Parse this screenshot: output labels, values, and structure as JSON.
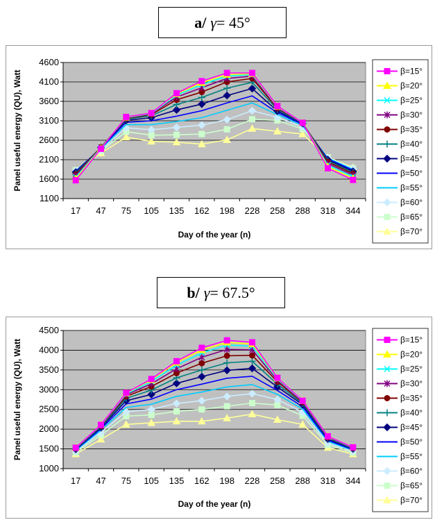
{
  "panels": [
    {
      "label": "a/",
      "gamma_symbol": "γ",
      "gamma_value": "= 45°"
    },
    {
      "label": "b/",
      "gamma_symbol": "γ",
      "gamma_value": "= 67.5°"
    }
  ],
  "chart_data": [
    {
      "type": "line",
      "ylabel": "Panel useful energy (QU), Watt",
      "xlabel": "Day of the year (n)",
      "categories": [
        "17",
        "47",
        "75",
        "105",
        "135",
        "162",
        "198",
        "228",
        "258",
        "288",
        "318",
        "344"
      ],
      "ylim": [
        1100,
        4600
      ],
      "yticks": [
        1100,
        1600,
        2100,
        2600,
        3100,
        3600,
        4100,
        4600
      ],
      "grid": true,
      "legend_position": "right",
      "series": [
        {
          "name": "β=15°",
          "color": "#ff00ff",
          "marker": "square",
          "values": [
            1570,
            2380,
            3200,
            3300,
            3810,
            4120,
            4330,
            4330,
            3480,
            3050,
            1880,
            1580
          ]
        },
        {
          "name": "β=20°",
          "color": "#ffff00",
          "marker": "triangle",
          "values": [
            1610,
            2390,
            3190,
            3300,
            3790,
            4080,
            4290,
            4310,
            3470,
            3050,
            1920,
            1620
          ]
        },
        {
          "name": "β=25°",
          "color": "#00ffff",
          "marker": "x",
          "values": [
            1650,
            2400,
            3180,
            3290,
            3760,
            4030,
            4250,
            4290,
            3460,
            3050,
            1960,
            1660
          ]
        },
        {
          "name": "β=30°",
          "color": "#800080",
          "marker": "star",
          "values": [
            1690,
            2410,
            3170,
            3280,
            3710,
            3950,
            4190,
            4250,
            3440,
            3050,
            2000,
            1700
          ]
        },
        {
          "name": "β=35°",
          "color": "#800000",
          "marker": "circle",
          "values": [
            1720,
            2420,
            3160,
            3260,
            3640,
            3840,
            4100,
            4190,
            3420,
            3050,
            2040,
            1740
          ]
        },
        {
          "name": "β=40°",
          "color": "#008080",
          "marker": "plus",
          "values": [
            1750,
            2420,
            3140,
            3230,
            3520,
            3700,
            3940,
            4090,
            3390,
            3040,
            2070,
            1770
          ]
        },
        {
          "name": "β=45°",
          "color": "#000080",
          "marker": "diamond",
          "values": [
            1780,
            2410,
            3110,
            3180,
            3380,
            3530,
            3750,
            3930,
            3350,
            3030,
            2100,
            1800
          ]
        },
        {
          "name": "β=50°",
          "color": "#0000ff",
          "marker": "none",
          "values": [
            1800,
            2400,
            3060,
            3100,
            3220,
            3360,
            3560,
            3740,
            3310,
            3010,
            2120,
            1830
          ]
        },
        {
          "name": "β=55°",
          "color": "#00ccff",
          "marker": "none",
          "values": [
            1810,
            2380,
            3000,
            3000,
            3080,
            3180,
            3370,
            3560,
            3260,
            2980,
            2140,
            1850
          ]
        },
        {
          "name": "β=60°",
          "color": "#ccecff",
          "marker": "diamond",
          "values": [
            1820,
            2350,
            2920,
            2870,
            2930,
            2990,
            3130,
            3360,
            3190,
            2940,
            2150,
            1870
          ]
        },
        {
          "name": "β=65°",
          "color": "#ccffcc",
          "marker": "square",
          "values": [
            1830,
            2320,
            2820,
            2730,
            2740,
            2760,
            2880,
            3140,
            3110,
            2890,
            2160,
            1880
          ]
        },
        {
          "name": "β=70°",
          "color": "#ffff99",
          "marker": "triangle",
          "values": [
            1820,
            2270,
            2680,
            2570,
            2550,
            2500,
            2610,
            2900,
            2830,
            2760,
            2160,
            1900
          ]
        }
      ]
    },
    {
      "type": "line",
      "ylabel": "Panel useful energy (QU), Watt",
      "xlabel": "Day of the year (n)",
      "categories": [
        "17",
        "47",
        "75",
        "105",
        "135",
        "162",
        "198",
        "228",
        "258",
        "288",
        "318",
        "344"
      ],
      "ylim": [
        1000,
        4500
      ],
      "yticks": [
        1000,
        1500,
        2000,
        2500,
        3000,
        3500,
        4000,
        4500
      ],
      "grid": true,
      "legend_position": "right",
      "series": [
        {
          "name": "β=15°",
          "color": "#ff00ff",
          "marker": "square",
          "values": [
            1530,
            2110,
            2920,
            3270,
            3720,
            4060,
            4250,
            4200,
            3300,
            2720,
            1820,
            1540
          ]
        },
        {
          "name": "β=20°",
          "color": "#ffff00",
          "marker": "triangle",
          "values": [
            1530,
            2110,
            2910,
            3250,
            3690,
            4010,
            4200,
            4160,
            3290,
            2720,
            1820,
            1540
          ]
        },
        {
          "name": "β=25°",
          "color": "#00ffff",
          "marker": "x",
          "values": [
            1520,
            2100,
            2890,
            3210,
            3620,
            3930,
            4130,
            4100,
            3270,
            2710,
            1810,
            1530
          ]
        },
        {
          "name": "β=30°",
          "color": "#800080",
          "marker": "star",
          "values": [
            1520,
            2090,
            2870,
            3150,
            3530,
            3820,
            4020,
            4010,
            3240,
            2700,
            1800,
            1530
          ]
        },
        {
          "name": "β=35°",
          "color": "#800000",
          "marker": "circle",
          "values": [
            1510,
            2080,
            2830,
            3080,
            3420,
            3670,
            3860,
            3870,
            3200,
            2680,
            1790,
            1520
          ]
        },
        {
          "name": "β=40°",
          "color": "#008080",
          "marker": "plus",
          "values": [
            1500,
            2060,
            2780,
            2990,
            3300,
            3500,
            3680,
            3720,
            3140,
            2650,
            1770,
            1510
          ]
        },
        {
          "name": "β=45°",
          "color": "#000080",
          "marker": "diamond",
          "values": [
            1490,
            2040,
            2720,
            2880,
            3160,
            3330,
            3490,
            3540,
            3070,
            2620,
            1750,
            1500
          ]
        },
        {
          "name": "β=50°",
          "color": "#0000ff",
          "marker": "none",
          "values": [
            1480,
            2010,
            2640,
            2760,
            3000,
            3140,
            3290,
            3340,
            2980,
            2570,
            1720,
            1480
          ]
        },
        {
          "name": "β=55°",
          "color": "#00ccff",
          "marker": "none",
          "values": [
            1460,
            1970,
            2550,
            2630,
            2830,
            2940,
            3070,
            3130,
            2880,
            2510,
            1690,
            1460
          ]
        },
        {
          "name": "β=60°",
          "color": "#ccecff",
          "marker": "diamond",
          "values": [
            1440,
            1920,
            2440,
            2500,
            2650,
            2720,
            2830,
            2900,
            2750,
            2430,
            1650,
            1440
          ]
        },
        {
          "name": "β=65°",
          "color": "#ccffcc",
          "marker": "square",
          "values": [
            1410,
            1850,
            2330,
            2360,
            2450,
            2500,
            2580,
            2660,
            2610,
            2340,
            1600,
            1410
          ]
        },
        {
          "name": "β=70°",
          "color": "#ffff99",
          "marker": "triangle",
          "values": [
            1370,
            1740,
            2120,
            2160,
            2200,
            2200,
            2280,
            2380,
            2240,
            2120,
            1530,
            1370
          ]
        }
      ]
    }
  ]
}
